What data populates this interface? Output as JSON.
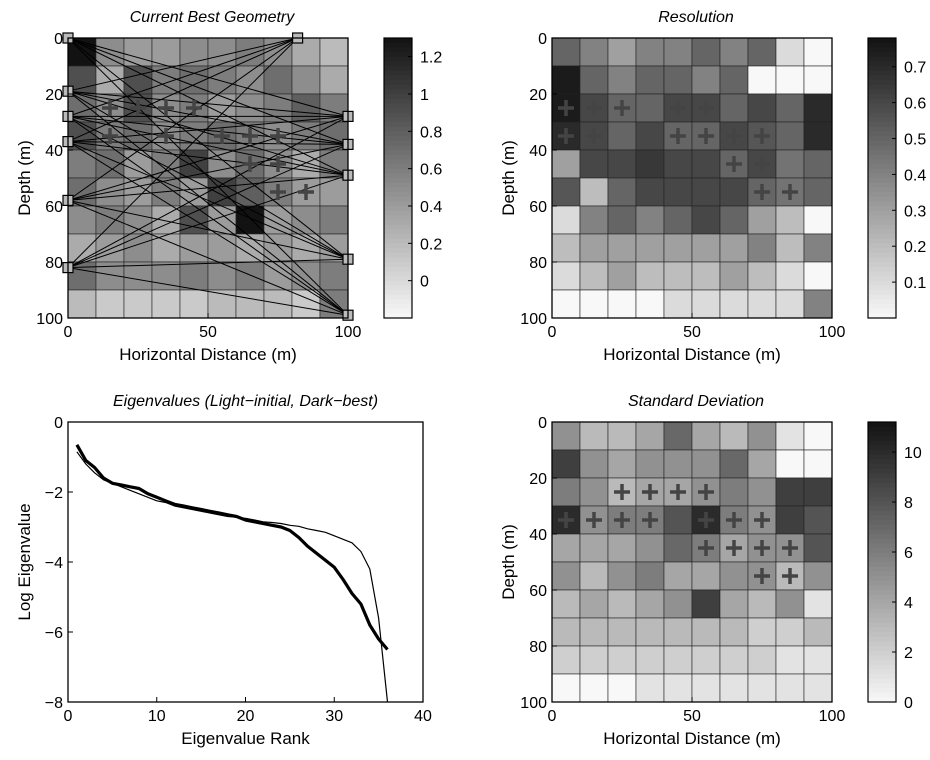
{
  "chart_data": [
    {
      "type": "heatmap",
      "title": "Current Best Geometry",
      "xlabel": "Horizontal Distance (m)",
      "ylabel": "Depth (m)",
      "xlim": [
        0,
        100
      ],
      "ylim": [
        100,
        0
      ],
      "xticks": [
        "0",
        "50",
        "100"
      ],
      "yticks": [
        "0",
        "20",
        "40",
        "60",
        "80",
        "100"
      ],
      "grid_size": [
        10,
        10
      ],
      "values": [
        [
          1.3,
          0.5,
          0.4,
          0.4,
          0.5,
          0.5,
          0.6,
          0.5,
          0.3,
          0.2
        ],
        [
          0.9,
          0.3,
          0.9,
          0.6,
          0.7,
          0.6,
          0.5,
          0.7,
          0.5,
          0.3
        ],
        [
          0.7,
          0.5,
          0.9,
          0.5,
          0.6,
          0.4,
          0.5,
          0.6,
          0.8,
          0.6
        ],
        [
          0.9,
          0.6,
          0.7,
          0.5,
          0.6,
          0.7,
          0.6,
          0.5,
          0.6,
          0.7
        ],
        [
          0.6,
          0.7,
          0.4,
          0.6,
          1.0,
          0.5,
          0.7,
          0.5,
          0.3,
          0.6
        ],
        [
          0.7,
          0.5,
          0.4,
          0.6,
          0.4,
          1.0,
          0.8,
          0.6,
          0.4,
          0.4
        ],
        [
          0.5,
          0.6,
          0.5,
          0.3,
          0.9,
          0.4,
          1.3,
          0.4,
          0.5,
          0.6
        ],
        [
          0.3,
          0.4,
          0.5,
          0.3,
          0.4,
          0.4,
          0.3,
          0.4,
          0.3,
          0.4
        ],
        [
          0.7,
          0.5,
          0.5,
          0.5,
          0.6,
          0.5,
          0.6,
          0.4,
          0.5,
          0.6
        ],
        [
          0.2,
          0.1,
          0.1,
          0.1,
          0.1,
          0.2,
          0.2,
          0.2,
          0.1,
          0.6
        ]
      ],
      "colorbar": {
        "ticks": [
          "1.2",
          "1",
          "0.8",
          "0.6",
          "0.4",
          "0.2",
          "0"
        ],
        "range": [
          -0.2,
          1.3
        ]
      },
      "sources": [
        [
          0,
          0
        ],
        [
          0,
          19
        ],
        [
          0,
          28
        ],
        [
          0,
          37
        ],
        [
          0,
          58
        ],
        [
          0,
          82
        ],
        [
          82,
          0
        ],
        [
          100,
          28
        ],
        [
          100,
          38
        ],
        [
          100,
          49
        ],
        [
          100,
          79
        ],
        [
          100,
          99
        ]
      ],
      "plus_cells": [
        [
          2,
          1
        ],
        [
          2,
          2
        ],
        [
          2,
          3
        ],
        [
          2,
          4
        ],
        [
          3,
          1
        ],
        [
          3,
          3
        ],
        [
          3,
          5
        ],
        [
          3,
          6
        ],
        [
          3,
          7
        ],
        [
          4,
          6
        ],
        [
          4,
          7
        ],
        [
          5,
          7
        ],
        [
          5,
          8
        ]
      ]
    },
    {
      "type": "heatmap",
      "title": "Resolution",
      "xlabel": "Horizontal Distance (m)",
      "ylabel": "Depth (m)",
      "xlim": [
        0,
        100
      ],
      "ylim": [
        100,
        0
      ],
      "xticks": [
        "0",
        "50",
        "100"
      ],
      "yticks": [
        "0",
        "20",
        "40",
        "60",
        "80",
        "100"
      ],
      "grid_size": [
        10,
        10
      ],
      "values": [
        [
          0.5,
          0.4,
          0.3,
          0.4,
          0.4,
          0.5,
          0.4,
          0.5,
          0.1,
          0.0
        ],
        [
          0.75,
          0.5,
          0.4,
          0.5,
          0.5,
          0.4,
          0.5,
          0.0,
          0.0,
          0.0
        ],
        [
          0.75,
          0.6,
          0.5,
          0.5,
          0.6,
          0.6,
          0.5,
          0.6,
          0.5,
          0.7
        ],
        [
          0.7,
          0.6,
          0.5,
          0.6,
          0.5,
          0.5,
          0.6,
          0.55,
          0.5,
          0.7
        ],
        [
          0.3,
          0.6,
          0.6,
          0.65,
          0.6,
          0.6,
          0.5,
          0.6,
          0.45,
          0.5
        ],
        [
          0.55,
          0.2,
          0.5,
          0.6,
          0.6,
          0.6,
          0.6,
          0.5,
          0.45,
          0.5
        ],
        [
          0.1,
          0.4,
          0.5,
          0.4,
          0.5,
          0.6,
          0.5,
          0.3,
          0.2,
          0.0
        ],
        [
          0.2,
          0.3,
          0.3,
          0.3,
          0.3,
          0.3,
          0.3,
          0.4,
          0.2,
          0.4
        ],
        [
          0.1,
          0.2,
          0.3,
          0.2,
          0.2,
          0.2,
          0.3,
          0.2,
          0.1,
          0.0
        ],
        [
          0.0,
          0.0,
          0.0,
          0.0,
          0.1,
          0.1,
          0.1,
          0.1,
          0.1,
          0.4
        ]
      ],
      "colorbar": {
        "ticks": [
          "0.7",
          "0.6",
          "0.5",
          "0.4",
          "0.3",
          "0.2",
          "0.1"
        ],
        "range": [
          0.0,
          0.78
        ]
      },
      "plus_cells": [
        [
          2,
          0
        ],
        [
          2,
          1
        ],
        [
          2,
          2
        ],
        [
          2,
          4
        ],
        [
          2,
          5
        ],
        [
          3,
          0
        ],
        [
          3,
          1
        ],
        [
          3,
          4
        ],
        [
          3,
          5
        ],
        [
          3,
          6
        ],
        [
          3,
          7
        ],
        [
          4,
          6
        ],
        [
          4,
          7
        ],
        [
          5,
          7
        ],
        [
          5,
          8
        ]
      ]
    },
    {
      "type": "line",
      "title": "Eigenvalues (Light−initial, Dark−best)",
      "xlabel": "Eigenvalue Rank",
      "ylabel": "Log Eigenvalue",
      "xlim": [
        0,
        40
      ],
      "ylim": [
        -8,
        0
      ],
      "xticks": [
        "0",
        "10",
        "20",
        "30",
        "40"
      ],
      "yticks": [
        "0",
        "−2",
        "−4",
        "−6",
        "−8"
      ],
      "series": [
        {
          "color": "#000000",
          "style": "thin",
          "x": [
            1,
            2,
            3,
            4,
            5,
            6,
            7,
            8,
            9,
            10,
            11,
            12,
            13,
            14,
            15,
            16,
            17,
            18,
            19,
            20,
            21,
            22,
            23,
            24,
            25,
            26,
            27,
            28,
            29,
            30,
            31,
            32,
            33,
            34,
            35,
            36
          ],
          "y": [
            -0.85,
            -1.2,
            -1.45,
            -1.65,
            -1.75,
            -1.85,
            -1.95,
            -2.05,
            -2.15,
            -2.25,
            -2.3,
            -2.4,
            -2.45,
            -2.5,
            -2.55,
            -2.6,
            -2.65,
            -2.7,
            -2.72,
            -2.75,
            -2.8,
            -2.85,
            -2.87,
            -2.9,
            -2.95,
            -2.98,
            -3.05,
            -3.1,
            -3.15,
            -3.25,
            -3.35,
            -3.45,
            -3.7,
            -4.2,
            -5.6,
            -8.0
          ]
        },
        {
          "color": "#000000",
          "style": "thick",
          "x": [
            1,
            2,
            3,
            4,
            5,
            6,
            7,
            8,
            9,
            10,
            11,
            12,
            13,
            14,
            15,
            16,
            17,
            18,
            19,
            20,
            21,
            22,
            23,
            24,
            25,
            26,
            27,
            28,
            29,
            30,
            31,
            32,
            33,
            34,
            35,
            36
          ],
          "y": [
            -0.65,
            -1.1,
            -1.3,
            -1.6,
            -1.75,
            -1.8,
            -1.85,
            -1.9,
            -2.05,
            -2.15,
            -2.25,
            -2.35,
            -2.4,
            -2.45,
            -2.5,
            -2.55,
            -2.6,
            -2.65,
            -2.7,
            -2.8,
            -2.85,
            -2.9,
            -2.95,
            -3.0,
            -3.1,
            -3.3,
            -3.55,
            -3.75,
            -3.95,
            -4.15,
            -4.5,
            -4.9,
            -5.2,
            -5.8,
            -6.2,
            -6.5
          ]
        }
      ]
    },
    {
      "type": "heatmap",
      "title": "Standard Deviation",
      "xlabel": "Horizontal Distance (m)",
      "ylabel": "Depth (m)",
      "xlim": [
        0,
        100
      ],
      "ylim": [
        100,
        0
      ],
      "xticks": [
        "0",
        "50",
        "100"
      ],
      "yticks": [
        "0",
        "20",
        "40",
        "60",
        "80",
        "100"
      ],
      "grid_size": [
        10,
        10
      ],
      "values": [
        [
          5,
          3,
          3,
          4,
          7,
          4,
          3,
          5,
          1,
          0
        ],
        [
          9,
          5,
          4,
          5,
          5,
          5,
          7,
          4,
          0,
          0
        ],
        [
          6,
          5,
          3,
          4,
          4,
          5,
          6,
          5,
          9,
          9
        ],
        [
          10,
          5,
          6,
          6,
          8,
          10,
          6,
          5,
          9,
          8
        ],
        [
          4,
          4,
          4,
          5,
          7,
          6,
          4,
          5,
          5,
          8
        ],
        [
          5,
          3,
          5,
          6,
          4,
          4,
          5,
          5,
          3,
          5
        ],
        [
          3,
          4,
          3,
          4,
          5,
          9,
          4,
          3,
          5,
          1
        ],
        [
          3,
          3,
          3,
          3,
          3,
          3,
          3,
          2,
          2,
          3
        ],
        [
          2,
          2,
          2,
          2,
          2,
          2,
          2,
          2,
          1,
          1
        ],
        [
          0,
          0,
          0,
          1,
          1,
          1,
          1,
          1,
          1,
          1
        ]
      ],
      "colorbar": {
        "ticks": [
          "10",
          "8",
          "6",
          "4",
          "2",
          "0"
        ],
        "range": [
          0,
          11.2
        ]
      },
      "plus_cells": [
        [
          2,
          2
        ],
        [
          2,
          3
        ],
        [
          2,
          4
        ],
        [
          2,
          5
        ],
        [
          3,
          0
        ],
        [
          3,
          1
        ],
        [
          3,
          2
        ],
        [
          3,
          3
        ],
        [
          3,
          5
        ],
        [
          3,
          6
        ],
        [
          3,
          7
        ],
        [
          4,
          5
        ],
        [
          4,
          6
        ],
        [
          4,
          7
        ],
        [
          4,
          8
        ],
        [
          5,
          7
        ],
        [
          5,
          8
        ]
      ]
    }
  ]
}
